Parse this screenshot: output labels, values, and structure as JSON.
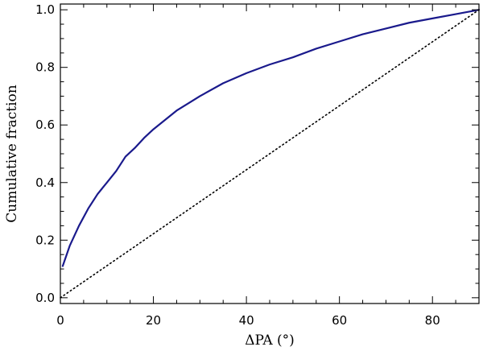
{
  "chart_data": {
    "type": "line",
    "title": "",
    "xlabel": "ΔPA (°)",
    "ylabel": "Cumulative fraction",
    "xlim": [
      0,
      90
    ],
    "ylim": [
      -0.02,
      1.02
    ],
    "xticks": [
      0,
      20,
      40,
      60,
      80
    ],
    "yticks": [
      0.0,
      0.2,
      0.4,
      0.6,
      0.8,
      1.0
    ],
    "xtick_labels": [
      "0",
      "20",
      "40",
      "60",
      "80"
    ],
    "ytick_labels": [
      "0.0",
      "0.2",
      "0.4",
      "0.6",
      "0.8",
      "1.0"
    ],
    "grid": false,
    "legend": "none",
    "series": [
      {
        "style": "solid",
        "color": "#1a1a8c",
        "x": [
          0.5,
          2,
          4,
          6,
          8,
          10,
          12,
          14,
          16,
          18,
          20,
          25,
          30,
          35,
          40,
          45,
          50,
          55,
          60,
          65,
          70,
          75,
          80,
          85,
          90
        ],
        "y": [
          0.11,
          0.18,
          0.25,
          0.31,
          0.36,
          0.4,
          0.44,
          0.49,
          0.52,
          0.555,
          0.585,
          0.65,
          0.7,
          0.745,
          0.78,
          0.81,
          0.835,
          0.865,
          0.89,
          0.915,
          0.935,
          0.955,
          0.97,
          0.985,
          1.0
        ]
      },
      {
        "style": "dotted",
        "color": "#000000",
        "x": [
          0,
          90
        ],
        "y": [
          0.0,
          1.0
        ]
      }
    ]
  }
}
